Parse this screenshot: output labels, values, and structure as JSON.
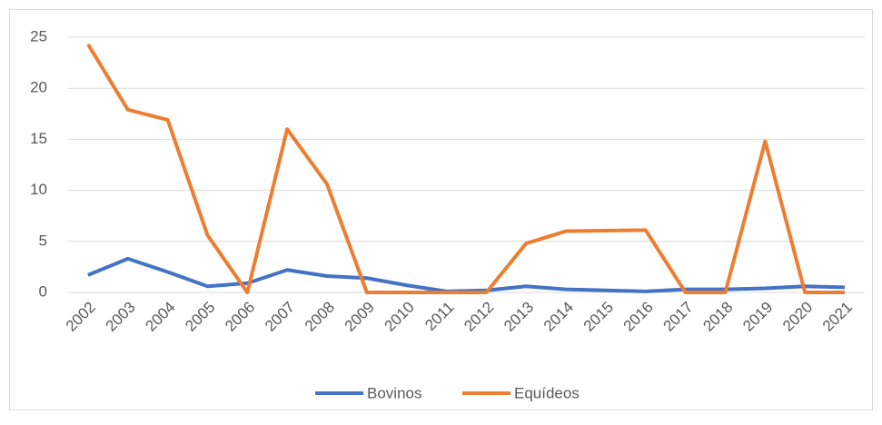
{
  "chart_data": {
    "type": "line",
    "categories": [
      "2002",
      "2003",
      "2004",
      "2005",
      "2006",
      "2007",
      "2008",
      "2009",
      "2010",
      "2011",
      "2012",
      "2013",
      "2014",
      "2015",
      "2016",
      "2017",
      "2018",
      "2019",
      "2020",
      "2021"
    ],
    "series": [
      {
        "name": "Bovinos",
        "color": "#4472c4",
        "values": [
          1.7,
          3.3,
          2.0,
          0.6,
          0.9,
          2.2,
          1.6,
          1.4,
          0.7,
          0.1,
          0.2,
          0.6,
          0.3,
          0.2,
          0.1,
          0.3,
          0.3,
          0.4,
          0.6,
          0.5
        ]
      },
      {
        "name": "Equídeos",
        "color": "#ed7d31",
        "values": [
          24.3,
          17.9,
          16.9,
          5.6,
          0,
          16,
          10.6,
          0,
          0,
          0,
          0,
          4.8,
          6.0,
          6.05,
          6.1,
          0,
          0,
          14.8,
          0,
          0
        ]
      }
    ],
    "ylim": [
      0,
      25
    ],
    "yticks": [
      0,
      5,
      10,
      15,
      20,
      25
    ],
    "grid": true,
    "legend": "bottom"
  }
}
